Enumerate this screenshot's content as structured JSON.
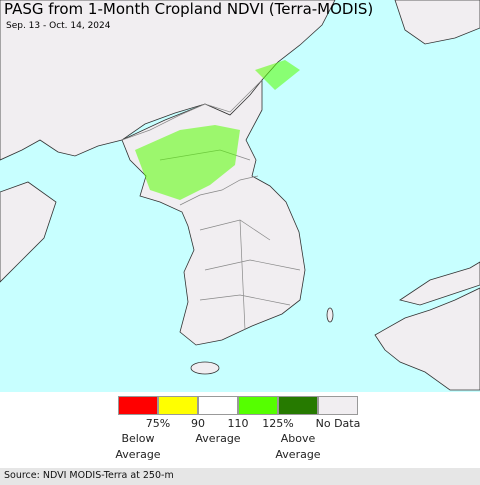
{
  "header": {
    "title": "PASG from 1-Month Cropland NDVI (Terra-MODIS)",
    "subtitle": "Sep. 13 - Oct. 14, 2024"
  },
  "legend": {
    "colors": [
      "#ff0000",
      "#ffff00",
      "#ffffff",
      "#55ff00",
      "#267a00",
      "#f1eef1"
    ],
    "tick_labels": [
      "75%",
      "90",
      "110",
      "125%"
    ],
    "no_data_label": "No Data",
    "group_labels": [
      "Below Average",
      "Average",
      "Above Average"
    ]
  },
  "footer": {
    "source": "Source: NDVI MODIS-Terra at 250-m"
  }
}
